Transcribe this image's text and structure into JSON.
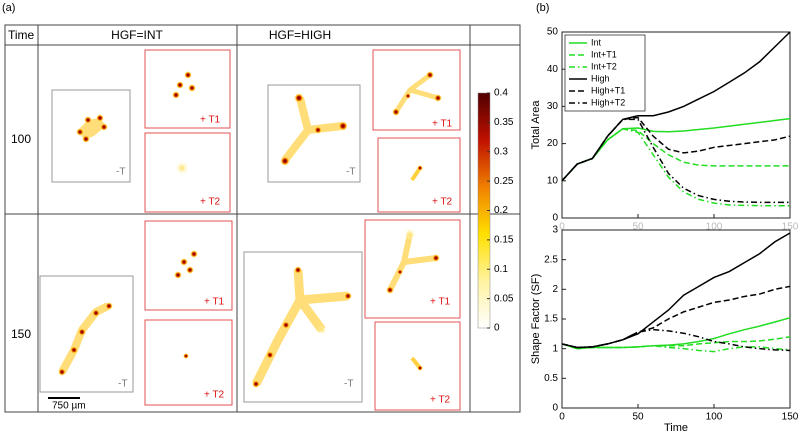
{
  "panel_a": {
    "label": "(a)",
    "header": [
      "Time",
      "HGF=INT",
      "HGF=HIGH"
    ],
    "rows": [
      "100",
      "150"
    ],
    "image_labels": [
      "-T",
      "+ T1",
      "+ T2"
    ],
    "scale_bar": "750 µm",
    "colorbar": {
      "lim": [
        0,
        0.4
      ],
      "ticks": [
        0,
        0.05,
        0.1,
        0.15,
        0.2,
        0.25,
        0.3,
        0.35,
        0.4
      ]
    }
  },
  "panel_b": {
    "label": "(b)"
  },
  "chart_data": [
    {
      "type": "line",
      "ylabel": "Total Area",
      "legend": "upper left",
      "x": [
        0,
        10,
        20,
        30,
        40,
        50,
        60,
        70,
        80,
        90,
        100,
        110,
        120,
        130,
        140,
        150
      ],
      "xlim": [
        0,
        150
      ],
      "xticks": [
        0,
        50,
        100,
        150
      ],
      "ylim": [
        0,
        50
      ],
      "yticks": [
        0,
        10,
        20,
        30,
        40,
        50
      ],
      "series": [
        {
          "name": "Int",
          "color": "#22dd22",
          "dash": "solid",
          "values": [
            10,
            14.5,
            16,
            21,
            24,
            24.2,
            23.3,
            23.2,
            23.4,
            23.8,
            24.2,
            24.7,
            25.2,
            25.7,
            26.2,
            26.7
          ]
        },
        {
          "name": "Int+T1",
          "color": "#22dd22",
          "dash": "dashed",
          "values": [
            10,
            14.5,
            16,
            21,
            24,
            23.5,
            20,
            17,
            15,
            14.2,
            14,
            14,
            14,
            14,
            14,
            14
          ]
        },
        {
          "name": "Int+T2",
          "color": "#22dd22",
          "dash": "dashdot",
          "values": [
            10,
            14.5,
            16,
            21,
            24,
            23,
            17,
            11,
            7,
            5,
            4,
            3.5,
            3.4,
            3.3,
            3.3,
            3.3
          ]
        },
        {
          "name": "High",
          "color": "#000000",
          "dash": "solid",
          "values": [
            10,
            14.5,
            16,
            22,
            26.5,
            27.5,
            27.5,
            28.5,
            30,
            32,
            34,
            36.5,
            39,
            42,
            46,
            50
          ]
        },
        {
          "name": "High+T1",
          "color": "#000000",
          "dash": "dashed",
          "values": [
            10,
            14.5,
            16,
            22,
            26.5,
            27,
            22,
            18.5,
            17.5,
            18,
            19,
            19.5,
            20,
            20.5,
            21,
            22
          ]
        },
        {
          "name": "High+T2",
          "color": "#000000",
          "dash": "dashdot",
          "values": [
            10,
            14.5,
            16,
            22,
            26.5,
            26.5,
            19,
            12,
            8,
            6,
            5,
            4.5,
            4.3,
            4.2,
            4.2,
            4.2
          ]
        }
      ]
    },
    {
      "type": "line",
      "ylabel": "Shape Factor (SF)",
      "xlabel": "Time",
      "x": [
        0,
        10,
        20,
        30,
        40,
        50,
        60,
        70,
        80,
        90,
        100,
        110,
        120,
        130,
        140,
        150
      ],
      "xlim": [
        0,
        150
      ],
      "xticks": [
        0,
        50,
        100,
        150
      ],
      "ylim": [
        0,
        3
      ],
      "yticks": [
        0,
        0.5,
        1,
        1.5,
        2,
        2.5,
        3
      ],
      "series": [
        {
          "color": "#22dd22",
          "dash": "solid",
          "values": [
            1.08,
            1.0,
            1.02,
            1.02,
            1.02,
            1.03,
            1.05,
            1.06,
            1.08,
            1.12,
            1.17,
            1.25,
            1.32,
            1.38,
            1.45,
            1.52
          ]
        },
        {
          "color": "#22dd22",
          "dash": "dashed",
          "values": [
            1.08,
            1.0,
            1.02,
            1.02,
            1.02,
            1.03,
            1.05,
            1.05,
            1.05,
            1.08,
            1.1,
            1.12,
            1.12,
            1.13,
            1.16,
            1.2
          ]
        },
        {
          "color": "#22dd22",
          "dash": "dashdot",
          "values": [
            1.08,
            1.0,
            1.02,
            1.02,
            1.02,
            1.03,
            1.05,
            1.02,
            1.0,
            0.97,
            0.95,
            1.0,
            1.03,
            1.03,
            1.0,
            0.98
          ]
        },
        {
          "color": "#000000",
          "dash": "solid",
          "values": [
            1.08,
            1.02,
            1.03,
            1.08,
            1.15,
            1.25,
            1.45,
            1.65,
            1.9,
            2.05,
            2.2,
            2.3,
            2.45,
            2.6,
            2.8,
            2.95
          ]
        },
        {
          "color": "#000000",
          "dash": "dashed",
          "values": [
            1.08,
            1.02,
            1.03,
            1.08,
            1.15,
            1.28,
            1.35,
            1.5,
            1.62,
            1.7,
            1.78,
            1.82,
            1.88,
            1.92,
            2.0,
            2.05
          ]
        },
        {
          "color": "#000000",
          "dash": "dashdot",
          "values": [
            1.08,
            1.02,
            1.03,
            1.08,
            1.15,
            1.28,
            1.32,
            1.3,
            1.26,
            1.2,
            1.12,
            1.08,
            1.03,
            1.0,
            0.98,
            0.97
          ]
        }
      ]
    }
  ]
}
